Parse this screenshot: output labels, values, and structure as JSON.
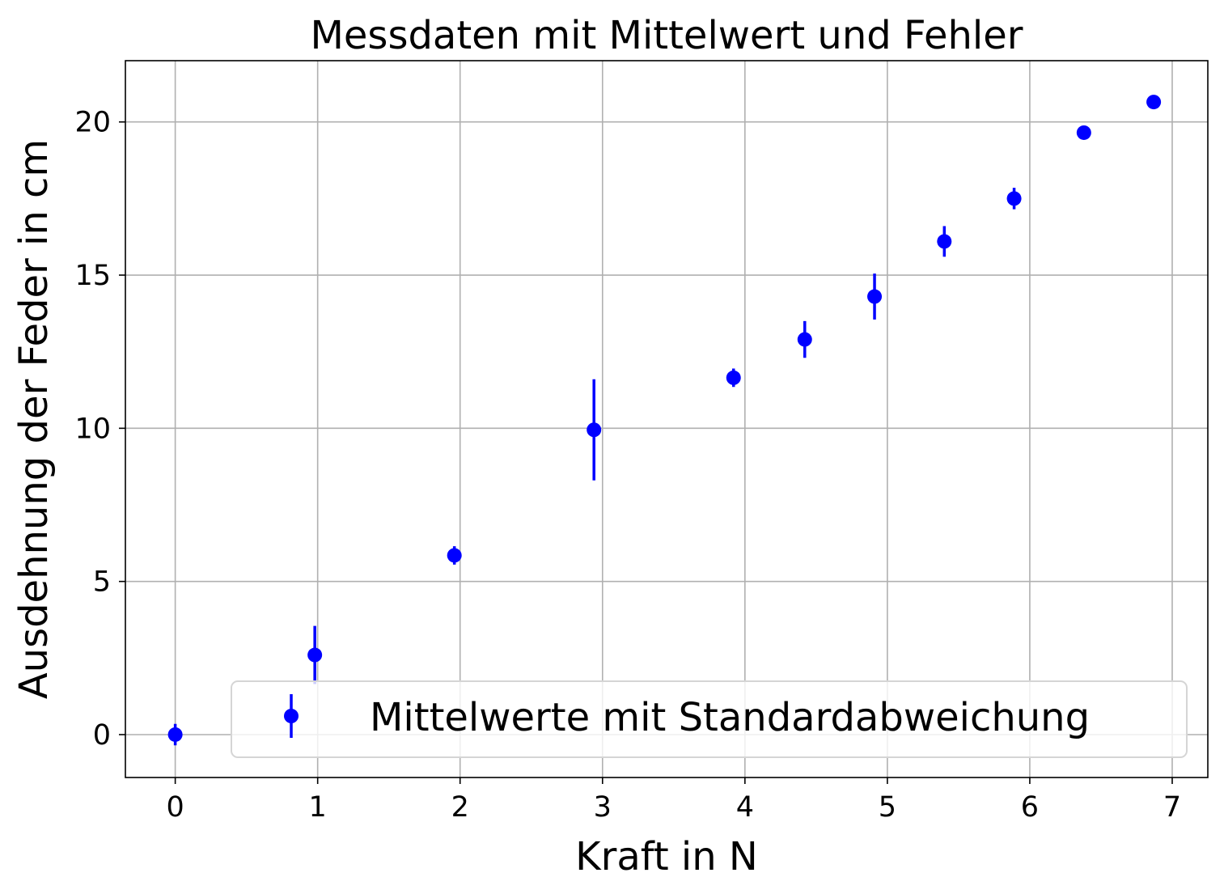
{
  "chart_data": {
    "type": "scatter",
    "title": "Messdaten mit Mittelwert und Fehler",
    "xlabel": "Kraft in N",
    "ylabel": "Ausdehnung der Feder in cm",
    "xlim": [
      -0.35,
      7.25
    ],
    "ylim": [
      -1.4,
      22.0
    ],
    "x_ticks": [
      0,
      1,
      2,
      3,
      4,
      5,
      6,
      7
    ],
    "y_ticks": [
      0,
      5,
      10,
      15,
      20
    ],
    "grid": true,
    "legend_position": "lower-right",
    "series": [
      {
        "name": "Mittelwerte mit Standardabweichung",
        "color": "#0000ff",
        "marker": "circle",
        "x": [
          0.0,
          0.98,
          1.96,
          2.94,
          3.92,
          4.42,
          4.91,
          5.4,
          5.89,
          6.38,
          6.87
        ],
        "y": [
          0.0,
          2.6,
          5.85,
          9.95,
          11.65,
          12.9,
          14.3,
          16.1,
          17.5,
          19.65,
          20.65
        ],
        "yerr": [
          0.35,
          0.95,
          0.3,
          1.65,
          0.3,
          0.6,
          0.75,
          0.5,
          0.35,
          0.0,
          0.0
        ]
      }
    ]
  }
}
